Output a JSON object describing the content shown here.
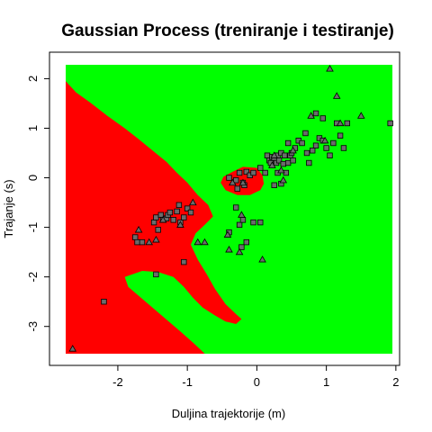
{
  "chart_data": {
    "type": "scatter",
    "title": "Gaussian Process (treniranje i testiranje)",
    "xlabel": "Duljina trajektorije (m)",
    "ylabel": "Trajanje (s)",
    "xlim": [
      -2.75,
      1.95
    ],
    "ylim": [
      -3.55,
      2.28
    ],
    "x_ticks": [
      -2,
      -1,
      0,
      1,
      2
    ],
    "y_ticks": [
      2,
      1,
      0,
      -1,
      -2,
      -3
    ],
    "x_tick_labels": [
      "-2",
      "-1",
      "0",
      "1",
      "2"
    ],
    "y_tick_labels": [
      "2",
      "1",
      "0",
      "-1",
      "-2",
      "-3"
    ],
    "grid": false,
    "background_class_color": "#00ff00",
    "region_class_color": "#ff0000",
    "decision_regions": [
      {
        "name": "red-region-main",
        "polygon": [
          [
            -2.75,
            1.95
          ],
          [
            -2.6,
            1.72
          ],
          [
            -2.4,
            1.52
          ],
          [
            -2.15,
            1.25
          ],
          [
            -1.9,
            1.0
          ],
          [
            -1.7,
            0.78
          ],
          [
            -1.5,
            0.55
          ],
          [
            -1.3,
            0.32
          ],
          [
            -1.15,
            0.1
          ],
          [
            -1.0,
            -0.1
          ],
          [
            -0.85,
            -0.35
          ],
          [
            -0.7,
            -0.55
          ],
          [
            -0.63,
            -0.78
          ],
          [
            -0.75,
            -0.95
          ],
          [
            -0.88,
            -1.12
          ],
          [
            -0.95,
            -1.35
          ],
          [
            -0.85,
            -1.65
          ],
          [
            -0.72,
            -1.95
          ],
          [
            -0.6,
            -2.25
          ],
          [
            -0.45,
            -2.55
          ],
          [
            -0.3,
            -2.75
          ],
          [
            -0.22,
            -2.85
          ],
          [
            -0.3,
            -2.95
          ],
          [
            -0.45,
            -2.9
          ],
          [
            -0.6,
            -2.78
          ],
          [
            -0.78,
            -2.62
          ],
          [
            -0.92,
            -2.42
          ],
          [
            -1.05,
            -2.2
          ],
          [
            -1.2,
            -2.0
          ],
          [
            -1.42,
            -1.9
          ],
          [
            -1.65,
            -1.88
          ],
          [
            -1.9,
            -2.0
          ],
          [
            -1.85,
            -2.2
          ],
          [
            -1.6,
            -2.5
          ],
          [
            -1.35,
            -2.8
          ],
          [
            -1.1,
            -3.1
          ],
          [
            -0.9,
            -3.35
          ],
          [
            -0.75,
            -3.55
          ],
          [
            -2.75,
            -3.55
          ]
        ]
      },
      {
        "name": "red-region-center",
        "polygon": [
          [
            -0.35,
            0.12
          ],
          [
            -0.2,
            0.22
          ],
          [
            0.0,
            0.2
          ],
          [
            0.08,
            0.05
          ],
          [
            0.1,
            -0.12
          ],
          [
            0.05,
            -0.25
          ],
          [
            -0.1,
            -0.35
          ],
          [
            -0.28,
            -0.35
          ],
          [
            -0.45,
            -0.25
          ],
          [
            -0.52,
            -0.1
          ],
          [
            -0.48,
            0.02
          ]
        ]
      }
    ],
    "series": [
      {
        "marker": "square",
        "points": [
          [
            -2.2,
            -2.5
          ],
          [
            -1.75,
            -1.2
          ],
          [
            -1.72,
            -1.3
          ],
          [
            -1.65,
            -1.3
          ],
          [
            -1.48,
            -0.9
          ],
          [
            -1.45,
            -0.8
          ],
          [
            -1.42,
            -1.05
          ],
          [
            -1.38,
            -0.75
          ],
          [
            -1.35,
            -0.85
          ],
          [
            -1.3,
            -0.82
          ],
          [
            -1.28,
            -0.75
          ],
          [
            -1.25,
            -0.7
          ],
          [
            -1.2,
            -0.85
          ],
          [
            -1.15,
            -0.68
          ],
          [
            -1.12,
            -0.55
          ],
          [
            -1.1,
            -0.9
          ],
          [
            -1.05,
            -0.8
          ],
          [
            -1.0,
            -0.62
          ],
          [
            -1.05,
            -1.7
          ],
          [
            -1.45,
            -1.95
          ],
          [
            -0.95,
            -0.7
          ],
          [
            -0.3,
            -0.05
          ],
          [
            -0.25,
            0.1
          ],
          [
            -0.2,
            -0.1
          ],
          [
            -0.15,
            0.12
          ],
          [
            -0.1,
            0.05
          ],
          [
            -0.05,
            0.1
          ],
          [
            -0.18,
            -0.15
          ],
          [
            -0.28,
            -0.22
          ],
          [
            -0.4,
            0.0
          ],
          [
            -0.3,
            -0.6
          ],
          [
            -0.25,
            -0.95
          ],
          [
            -0.2,
            -0.85
          ],
          [
            -0.15,
            -1.3
          ],
          [
            -0.4,
            -1.1
          ],
          [
            -0.05,
            -0.9
          ],
          [
            0.05,
            -0.9
          ],
          [
            -0.22,
            -1.4
          ],
          [
            0.15,
            0.45
          ],
          [
            0.18,
            0.35
          ],
          [
            0.2,
            0.3
          ],
          [
            0.22,
            0.42
          ],
          [
            0.25,
            0.4
          ],
          [
            0.28,
            0.3
          ],
          [
            0.3,
            0.45
          ],
          [
            0.32,
            0.35
          ],
          [
            0.35,
            0.5
          ],
          [
            0.38,
            0.28
          ],
          [
            0.4,
            0.45
          ],
          [
            0.42,
            0.1
          ],
          [
            0.45,
            0.3
          ],
          [
            0.48,
            0.45
          ],
          [
            0.5,
            0.5
          ],
          [
            0.52,
            0.35
          ],
          [
            0.45,
            0.7
          ],
          [
            0.55,
            0.6
          ],
          [
            0.6,
            0.75
          ],
          [
            0.65,
            0.7
          ],
          [
            0.7,
            0.9
          ],
          [
            0.72,
            0.5
          ],
          [
            0.75,
            0.3
          ],
          [
            0.8,
            0.55
          ],
          [
            0.85,
            0.65
          ],
          [
            0.9,
            0.8
          ],
          [
            0.95,
            0.75
          ],
          [
            1.0,
            0.6
          ],
          [
            1.05,
            0.45
          ],
          [
            1.1,
            0.7
          ],
          [
            1.15,
            1.1
          ],
          [
            1.2,
            0.85
          ],
          [
            1.25,
            0.6
          ],
          [
            1.3,
            1.1
          ],
          [
            0.95,
            1.2
          ],
          [
            0.85,
            1.3
          ],
          [
            1.92,
            1.1
          ],
          [
            0.3,
            0.1
          ],
          [
            0.12,
            0.1
          ],
          [
            0.05,
            0.2
          ],
          [
            0.35,
            -0.12
          ],
          [
            0.25,
            -0.15
          ]
        ],
        "color": "#6b6b6b"
      },
      {
        "marker": "triangle",
        "points": [
          [
            -2.65,
            -3.45
          ],
          [
            -1.7,
            -1.05
          ],
          [
            -1.55,
            -1.3
          ],
          [
            -1.45,
            -1.25
          ],
          [
            -1.35,
            -0.85
          ],
          [
            -1.1,
            -0.95
          ],
          [
            -0.92,
            -0.5
          ],
          [
            -0.85,
            -1.3
          ],
          [
            -0.75,
            -1.3
          ],
          [
            -0.4,
            -1.45
          ],
          [
            -0.25,
            -1.5
          ],
          [
            -0.22,
            -0.75
          ],
          [
            -0.42,
            -1.15
          ],
          [
            -0.35,
            -0.1
          ],
          [
            -0.2,
            -0.1
          ],
          [
            0.08,
            -1.65
          ],
          [
            0.25,
            0.45
          ],
          [
            0.22,
            0.25
          ],
          [
            0.52,
            0.55
          ],
          [
            0.78,
            1.25
          ],
          [
            0.98,
            0.75
          ],
          [
            1.05,
            2.2
          ],
          [
            1.15,
            1.65
          ],
          [
            1.2,
            1.1
          ],
          [
            1.5,
            1.25
          ],
          [
            0.35,
            0.15
          ],
          [
            0.38,
            -0.05
          ]
        ],
        "color": "#6b6b6b"
      }
    ]
  }
}
